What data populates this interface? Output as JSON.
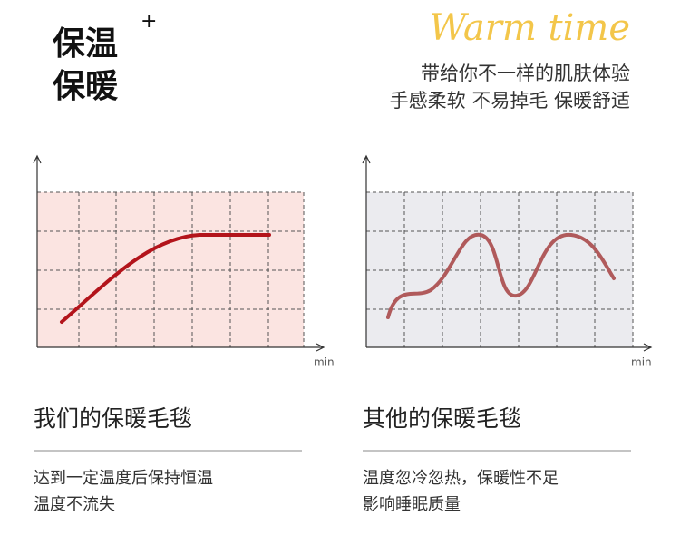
{
  "header": {
    "title_line1": "保温",
    "title_line2": "保暖",
    "plus": "+",
    "brand": "Warm time",
    "subtitle_line1": "带给你不一样的肌肤体验",
    "subtitle_line2": "手感柔软 不易掉毛 保暖舒适"
  },
  "panels": [
    {
      "axis_label": "min",
      "heading": "我们的保暖毛毯",
      "text_line1": "达到一定温度后保持恒温",
      "text_line2": "温度不流失"
    },
    {
      "axis_label": "min",
      "heading": "其他的保暖毛毯",
      "text_line1": "温度忽冷忽热，保暖性不足",
      "text_line2": "影响睡眠质量"
    }
  ]
}
